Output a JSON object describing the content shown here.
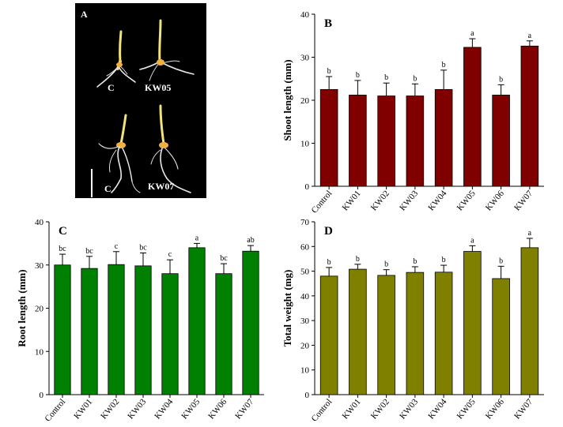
{
  "photo_panel": {
    "panel_label": "A",
    "labels": [
      "C",
      "KW05",
      "C",
      "KW07"
    ]
  },
  "chart_data": [
    {
      "panel": "B",
      "type": "bar",
      "title": "",
      "xlabel": "",
      "ylabel": "Shoot length (mm)",
      "ylim": [
        0,
        40
      ],
      "yticks": [
        0,
        10,
        20,
        30,
        40
      ],
      "categories": [
        "Control",
        "KW01",
        "KW02",
        "KW03",
        "KW04",
        "KW05",
        "KW06",
        "KW07"
      ],
      "values": [
        22.5,
        21.2,
        21.0,
        21.0,
        22.5,
        32.3,
        21.2,
        32.6
      ],
      "errors": [
        3.0,
        3.4,
        3.0,
        2.8,
        4.5,
        2.0,
        2.4,
        1.2
      ],
      "significance": [
        "b",
        "b",
        "b",
        "b",
        "b",
        "a",
        "b",
        "a"
      ],
      "color": "#800000",
      "grid": false
    },
    {
      "panel": "C",
      "type": "bar",
      "title": "",
      "xlabel": "",
      "ylabel": "Root length (mm)",
      "ylim": [
        0,
        40
      ],
      "yticks": [
        0,
        10,
        20,
        30,
        40
      ],
      "categories": [
        "Control",
        "KW01",
        "KW02",
        "KW03",
        "KW04",
        "KW05",
        "KW06",
        "KW07"
      ],
      "values": [
        30.0,
        29.2,
        30.1,
        29.8,
        28.0,
        34.0,
        28.0,
        33.2
      ],
      "errors": [
        2.5,
        2.8,
        3.0,
        3.0,
        3.2,
        1.0,
        2.3,
        1.3
      ],
      "significance": [
        "bc",
        "bc",
        "c",
        "bc",
        "c",
        "a",
        "bc",
        "ab"
      ],
      "color": "#008000",
      "grid": false
    },
    {
      "panel": "D",
      "type": "bar",
      "title": "",
      "xlabel": "",
      "ylabel": "Total weight (mg)",
      "ylim": [
        0,
        70
      ],
      "yticks": [
        0,
        10,
        20,
        30,
        40,
        50,
        60,
        70
      ],
      "categories": [
        "Control",
        "KW01",
        "KW02",
        "KW03",
        "KW04",
        "KW05",
        "KW06",
        "KW07"
      ],
      "values": [
        48.0,
        50.8,
        48.3,
        49.5,
        49.6,
        58.0,
        47.0,
        59.5
      ],
      "errors": [
        3.5,
        2.0,
        2.3,
        2.3,
        2.8,
        2.3,
        5.0,
        3.8
      ],
      "significance": [
        "b",
        "b",
        "b",
        "b",
        "b",
        "a",
        "b",
        "a"
      ],
      "color": "#808000",
      "grid": false
    }
  ]
}
